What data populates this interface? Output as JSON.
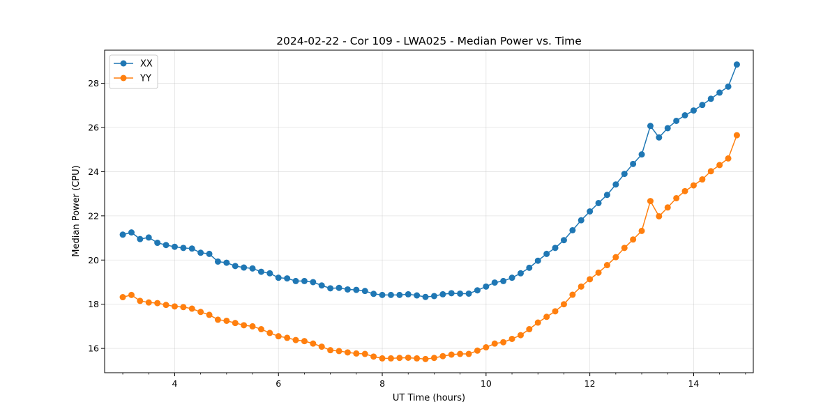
{
  "chart_data": {
    "type": "line",
    "title": "2024-02-22 - Cor 109 - LWA025 - Median Power vs. Time",
    "xlabel": "UT Time (hours)",
    "ylabel": "Median Power (CPU)",
    "xlim": [
      2.65,
      15.15
    ],
    "ylim": [
      14.9,
      29.5
    ],
    "x_ticks": [
      4,
      6,
      8,
      10,
      12,
      14
    ],
    "y_ticks": [
      16,
      18,
      20,
      22,
      24,
      26,
      28
    ],
    "x_tick_labels": [
      "4",
      "6",
      "8",
      "10",
      "12",
      "14"
    ],
    "y_tick_labels": [
      "16",
      "18",
      "20",
      "22",
      "24",
      "26",
      "28"
    ],
    "x_minor_step": 0.5,
    "grid": true,
    "legend_position": "upper-left",
    "x": [
      3.0,
      3.167,
      3.333,
      3.5,
      3.667,
      3.833,
      4.0,
      4.167,
      4.333,
      4.5,
      4.667,
      4.833,
      5.0,
      5.167,
      5.333,
      5.5,
      5.667,
      5.833,
      6.0,
      6.167,
      6.333,
      6.5,
      6.667,
      6.833,
      7.0,
      7.167,
      7.333,
      7.5,
      7.667,
      7.833,
      8.0,
      8.167,
      8.333,
      8.5,
      8.667,
      8.833,
      9.0,
      9.167,
      9.333,
      9.5,
      9.667,
      9.833,
      10.0,
      10.167,
      10.333,
      10.5,
      10.667,
      10.833,
      11.0,
      11.167,
      11.333,
      11.5,
      11.667,
      11.833,
      12.0,
      12.167,
      12.333,
      12.5,
      12.667,
      12.833,
      13.0,
      13.167,
      13.333,
      13.5,
      13.667,
      13.833,
      14.0,
      14.167,
      14.333,
      14.5,
      14.667,
      14.833
    ],
    "series": [
      {
        "name": "XX",
        "color": "#1f77b4",
        "values": [
          21.15,
          21.25,
          20.95,
          21.02,
          20.78,
          20.68,
          20.6,
          20.55,
          20.52,
          20.33,
          20.28,
          19.93,
          19.88,
          19.73,
          19.66,
          19.62,
          19.47,
          19.4,
          19.2,
          19.17,
          19.05,
          19.05,
          19.0,
          18.85,
          18.72,
          18.74,
          18.67,
          18.65,
          18.6,
          18.47,
          18.42,
          18.42,
          18.42,
          18.45,
          18.4,
          18.33,
          18.37,
          18.45,
          18.5,
          18.48,
          18.48,
          18.63,
          18.8,
          18.98,
          19.05,
          19.2,
          19.4,
          19.65,
          19.97,
          20.28,
          20.55,
          20.9,
          21.35,
          21.8,
          22.2,
          22.58,
          22.95,
          23.42,
          23.9,
          24.35,
          24.78,
          26.07,
          25.55,
          25.97,
          26.3,
          26.55,
          26.77,
          27.02,
          27.3,
          27.58,
          27.85,
          28.85
        ]
      },
      {
        "name": "YY",
        "color": "#ff7f0e",
        "values": [
          18.32,
          18.42,
          18.15,
          18.08,
          18.05,
          17.97,
          17.9,
          17.87,
          17.8,
          17.65,
          17.52,
          17.3,
          17.25,
          17.15,
          17.05,
          17.0,
          16.87,
          16.7,
          16.55,
          16.48,
          16.38,
          16.33,
          16.22,
          16.08,
          15.92,
          15.88,
          15.82,
          15.77,
          15.75,
          15.63,
          15.55,
          15.55,
          15.57,
          15.58,
          15.55,
          15.52,
          15.57,
          15.65,
          15.72,
          15.75,
          15.75,
          15.9,
          16.05,
          16.22,
          16.28,
          16.43,
          16.6,
          16.87,
          17.17,
          17.43,
          17.68,
          18.0,
          18.43,
          18.8,
          19.13,
          19.43,
          19.77,
          20.13,
          20.55,
          20.93,
          21.32,
          22.67,
          21.98,
          22.38,
          22.8,
          23.12,
          23.38,
          23.65,
          24.02,
          24.3,
          24.6,
          25.65
        ]
      }
    ]
  }
}
